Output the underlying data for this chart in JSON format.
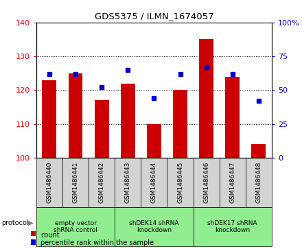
{
  "title": "GDS5375 / ILMN_1674057",
  "samples": [
    "GSM1486440",
    "GSM1486441",
    "GSM1486442",
    "GSM1486443",
    "GSM1486444",
    "GSM1486445",
    "GSM1486446",
    "GSM1486447",
    "GSM1486448"
  ],
  "counts": [
    123,
    125,
    117,
    122,
    110,
    120,
    135,
    124,
    104
  ],
  "percentiles": [
    62,
    62,
    52,
    65,
    44,
    62,
    67,
    62,
    42
  ],
  "ylim_left": [
    100,
    140
  ],
  "ylim_right": [
    0,
    100
  ],
  "yticks_left": [
    100,
    110,
    120,
    130,
    140
  ],
  "yticks_right": [
    0,
    25,
    50,
    75,
    100
  ],
  "bar_color": "#cc0000",
  "marker_color": "#0000cc",
  "groups": [
    {
      "label": "empty vector\nshRNA control",
      "indices": [
        0,
        1,
        2
      ]
    },
    {
      "label": "shDEK14 shRNA\nknockdown",
      "indices": [
        3,
        4,
        5
      ]
    },
    {
      "label": "shDEK17 shRNA\nknockdown",
      "indices": [
        6,
        7,
        8
      ]
    }
  ],
  "group_color": "#90ee90",
  "sample_box_color": "#d3d3d3",
  "bg_color": "#ffffff",
  "bar_width": 0.55
}
